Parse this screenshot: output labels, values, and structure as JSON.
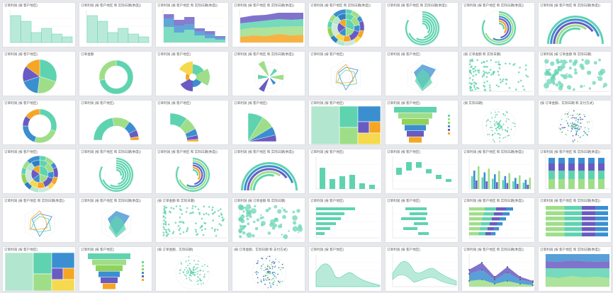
{
  "palette": [
    "#5fd3b0",
    "#9fde88",
    "#3b8fd0",
    "#6a5bc2",
    "#f5a623",
    "#f5d94e",
    "#cfe8dd",
    "#b2e6cf",
    "#2d7fc2",
    "#91d35a"
  ],
  "tiles": [
    {
      "title": "订单利润 (按 客户地区)",
      "icon": "stepped-histogram"
    },
    {
      "title": "订单利润 (按 客户地区 和 实际日期(季度))",
      "icon": "stepped-histogram"
    },
    {
      "title": "订单利润 (按 客户地区 和 实际日期(季度))",
      "icon": "stacked-stepped"
    },
    {
      "title": "订单利润 (按 客户地区 和 实际日期(季度))",
      "icon": "stacked-area"
    },
    {
      "title": "订单利润 (按 客户地区 和 实际日期(季度))",
      "icon": "sunburst"
    },
    {
      "title": "订单利润 (按 客户地区 和 实际日期(季度))",
      "icon": "radial-bar"
    },
    {
      "title": "订单利润 (按 客户地区 和 实际日期(季度))",
      "icon": "radial-bar-color"
    },
    {
      "title": "订单利润 (按 客户地区 和 实际日期(季度))",
      "icon": "gauge-arcs"
    },
    {
      "title": "订单利润 (按 客户地区)",
      "icon": "pie"
    },
    {
      "title": "订单金额",
      "icon": "donut-single"
    },
    {
      "title": "订单利润 (按 客户地区)",
      "icon": "rose"
    },
    {
      "title": "订单利润 (按 客户地区 和 实际日期(季度))",
      "icon": "polar-bar"
    },
    {
      "title": "订单利润 (按 客户地区)",
      "icon": "radar"
    },
    {
      "title": "订单利润 (按 客户地区)",
      "icon": "radar-filled"
    },
    {
      "title": "(按 订单金额 和 实际日期)",
      "icon": "scatter"
    },
    {
      "title": "订单利润 (按 订单金额 和 实际日期)",
      "icon": "bubble"
    },
    {
      "title": "订单利润 (按 客户地区)",
      "icon": "donut"
    },
    {
      "title": "订单利润 (按 客户地区)",
      "icon": "half-donut"
    },
    {
      "title": "订单利润 (按 客户地区)",
      "icon": "quarter-donut"
    },
    {
      "title": "订单利润 (按 客户地区)",
      "icon": "quarter-pie"
    },
    {
      "title": "订单利润 (按 客户地区)",
      "icon": "treemap"
    },
    {
      "title": "订单利润 (按 客户地区)",
      "icon": "funnel"
    },
    {
      "title": "(按 实际日期)",
      "icon": "polar-scatter"
    },
    {
      "title": "(按 订单金额、实际日期 和 支付方式)",
      "icon": "polar-scatter-multi"
    },
    {
      "title": "订单利润 (按 客户地区)",
      "icon": "sunburst"
    },
    {
      "title": "订单利润 (按 客户地区 和 实际日期(季度))",
      "icon": "radial-bar"
    },
    {
      "title": "订单利润 (按 客户地区 和 实际日期(季度))",
      "icon": "radial-bar-color"
    },
    {
      "title": "订单利润 (按 客户地区 和 实际日期(季度))",
      "icon": "gauge-arcs"
    },
    {
      "title": "订单利润 (按 客户地区)",
      "icon": "column"
    },
    {
      "title": "订单利润 (按 客户地区)",
      "icon": "floating-column"
    },
    {
      "title": "订单利润 (按 客户地区 和 实际日期(季度))",
      "icon": "grouped-column"
    },
    {
      "title": "订单利润 (按 客户地区 和 实际日期(季度))",
      "icon": "stacked-column"
    },
    {
      "title": "订单利润 (按 客户地区 和 实际日期(季度))",
      "icon": "radar"
    },
    {
      "title": "订单利润 (按 客户地区 和 实际日期(季度))",
      "icon": "radar-filled"
    },
    {
      "title": "(按 订单金额 和 实际日期)",
      "icon": "scatter"
    },
    {
      "title": "订单利润 (按 订单金额 和 实际日期)",
      "icon": "bubble"
    },
    {
      "title": "订单利润 (按 客户地区)",
      "icon": "hbar"
    },
    {
      "title": "订单利润 (按 客户地区)",
      "icon": "floating-hbar"
    },
    {
      "title": "订单利润 (按 客户地区 和 实际日期(季度))",
      "icon": "stacked-hbar"
    },
    {
      "title": "订单利润 (按 客户地区 和 实际日期(季度))",
      "icon": "stacked-hbar-100"
    },
    {
      "title": "订单利润 (按 客户地区)",
      "icon": "treemap"
    },
    {
      "title": "订单利润 (按 客户地区)",
      "icon": "funnel"
    },
    {
      "title": "(按 订单金额、实际日期)",
      "icon": "polar-scatter"
    },
    {
      "title": "(按 订单金额、实际日期 和 支付方式)",
      "icon": "polar-scatter-multi"
    },
    {
      "title": "订单利润 (按 客户地区)",
      "icon": "area"
    },
    {
      "title": "订单利润 (按 客户地区)",
      "icon": "range-area"
    },
    {
      "title": "订单利润 (按 客户地区 和 实际日期(季度))",
      "icon": "stacked-area-markers"
    },
    {
      "title": "订单利润 (按 客户地区 和 实际日期(季度))",
      "icon": "stacked-area-100"
    }
  ]
}
